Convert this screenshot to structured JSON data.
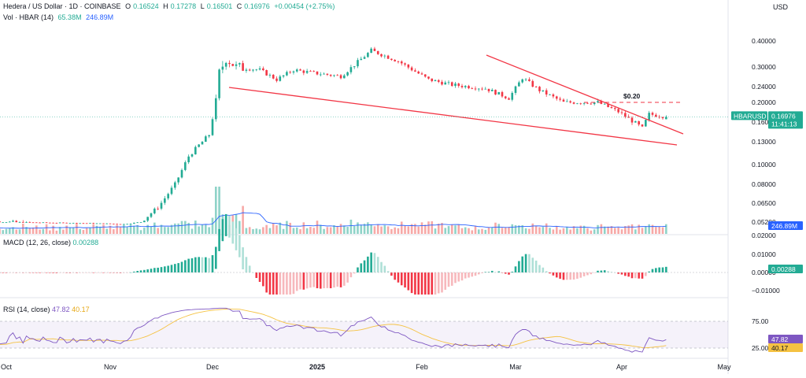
{
  "header": {
    "symbol": "Hedera / US Dollar · 1D · COINBASE",
    "o_label": "O",
    "o": "0.16524",
    "h_label": "H",
    "h": "0.17278",
    "l_label": "L",
    "l": "0.16501",
    "c_label": "C",
    "c": "0.16976",
    "change": "+0.00454 (+2.75%)",
    "vol_label": "Vol · HBAR (14)",
    "vol": "65.38M",
    "vol_ma": "246.89M"
  },
  "price_axis": {
    "currency": "USD",
    "ticks": [
      "0.40000",
      "0.30000",
      "0.24000",
      "0.20000",
      "0.16000",
      "0.13000",
      "0.10000",
      "0.08000",
      "0.06500",
      "0.05200",
      "0.02000"
    ],
    "symbol_tag": "HBARUSD",
    "last_price": "0.16976",
    "countdown": "11:41:13",
    "volume_tag": "246.89M"
  },
  "annotation": {
    "level_label": "$0.20"
  },
  "macd": {
    "title": "MACD (12, 26, close)",
    "value": "0.00288",
    "ticks": [
      "0.01000",
      "0.00000",
      "−0.01000"
    ]
  },
  "rsi": {
    "title": "RSI (14, close)",
    "value": "47.82",
    "ma": "40.17",
    "ticks": [
      "75.00",
      "25.00"
    ]
  },
  "time_axis": [
    "Oct",
    "Nov",
    "Dec",
    "2025",
    "Feb",
    "Mar",
    "Apr",
    "May"
  ],
  "colors": {
    "up": "#22ab94",
    "down": "#f23645",
    "trend": "#f23645",
    "volume_ma": "#2962ff",
    "rsi": "#7e57c2",
    "rsi_ma": "#f5c242"
  },
  "chart_data": {
    "type": "candlestick",
    "x_start": "2024-09-22",
    "ohlc_anchors": [
      [
        "2024-09-22",
        0.053
      ],
      [
        "2024-10-01",
        0.052
      ],
      [
        "2024-10-12",
        0.05
      ],
      [
        "2024-10-25",
        0.048
      ],
      [
        "2024-11-05",
        0.045
      ],
      [
        "2024-11-10",
        0.052
      ],
      [
        "2024-11-15",
        0.062
      ],
      [
        "2024-11-20",
        0.08
      ],
      [
        "2024-11-24",
        0.11
      ],
      [
        "2024-11-27",
        0.125
      ],
      [
        "2024-11-30",
        0.14
      ],
      [
        "2024-12-02",
        0.2
      ],
      [
        "2024-12-03",
        0.28
      ],
      [
        "2024-12-05",
        0.33
      ],
      [
        "2024-12-08",
        0.3
      ],
      [
        "2024-12-15",
        0.29
      ],
      [
        "2024-12-20",
        0.26
      ],
      [
        "2024-12-25",
        0.29
      ],
      [
        "2024-12-31",
        0.28
      ],
      [
        "2025-01-08",
        0.27
      ],
      [
        "2025-01-17",
        0.36
      ],
      [
        "2025-01-25",
        0.32
      ],
      [
        "2025-02-03",
        0.26
      ],
      [
        "2025-02-10",
        0.245
      ],
      [
        "2025-02-20",
        0.235
      ],
      [
        "2025-02-27",
        0.21
      ],
      [
        "2025-03-03",
        0.265
      ],
      [
        "2025-03-08",
        0.23
      ],
      [
        "2025-03-15",
        0.2
      ],
      [
        "2025-03-25",
        0.2
      ],
      [
        "2025-03-31",
        0.18
      ],
      [
        "2025-04-07",
        0.15
      ],
      [
        "2025-04-09",
        0.175
      ],
      [
        "2025-04-14",
        0.17
      ]
    ],
    "macd_range": [
      -0.012,
      0.012
    ],
    "rsi_range": [
      20,
      90
    ],
    "last_price": 0.16976,
    "resistance_level": 0.2
  }
}
